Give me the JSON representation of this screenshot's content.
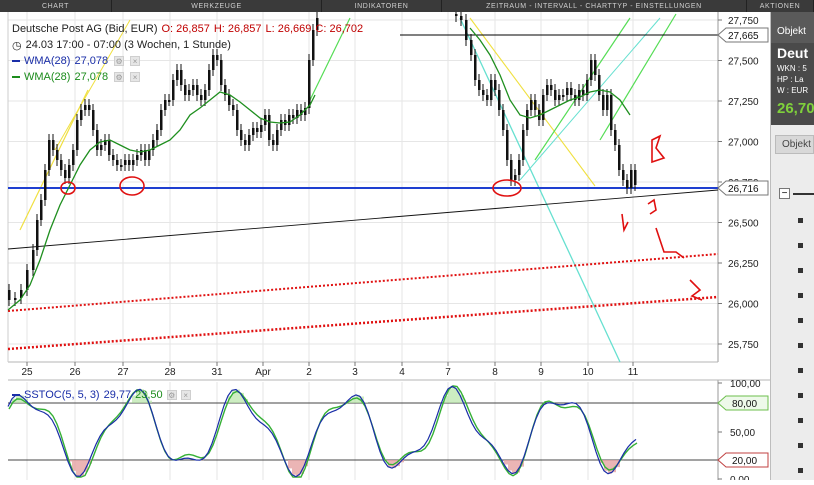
{
  "toolbar": {
    "tabs": [
      {
        "label": "CHART"
      },
      {
        "label": "WERKZEUGE"
      },
      {
        "label": "INDIKATOREN"
      },
      {
        "label": "ZEITRAUM - INTERVALL - CHARTTYP - EINSTELLUNGEN"
      },
      {
        "label": "AKTIONEN"
      }
    ]
  },
  "legend": {
    "instrument": "Deutsche Post AG (Bid, EUR)",
    "ohlc": {
      "o": "O: 26,857",
      "h": "H: 26,857",
      "l": "L: 26,669",
      "c": "C: 26,702"
    },
    "period": "24.03 17:00 - 07:00 (3 Wochen, 1 Stunde)",
    "wma1": {
      "label": "WMA(28)",
      "value": "27,078",
      "color": "#1a2ea8"
    },
    "wma2": {
      "label": "WMA(28)",
      "value": "27,078",
      "color": "#1c8c1c"
    }
  },
  "price_axis": {
    "ticks": [
      "27,750",
      "27,500",
      "27,250",
      "27,000",
      "26,750",
      "26,500",
      "26,250",
      "26,000",
      "25,750"
    ],
    "marker_high": "27,665",
    "marker_current": "26,716"
  },
  "date_axis": {
    "labels": [
      "25",
      "26",
      "27",
      "28",
      "31",
      "Apr",
      "2",
      "3",
      "4",
      "7",
      "8",
      "9",
      "10",
      "11"
    ]
  },
  "oscillator": {
    "label": "SSTOC(5, 5, 3)",
    "value1": "29,77",
    "value2": "23,50",
    "ticks": [
      "100,00",
      "80,00",
      "50,00",
      "20,00",
      "0,00"
    ],
    "marker_upper": "80,00",
    "marker_lower": "20,00"
  },
  "side_panel": {
    "tab": "Objekt",
    "name": "Deut",
    "wkn": "WKN : 5",
    "hp": "HP : La",
    "w": "W : EUR",
    "price": "26,70",
    "tab2": "Objekt",
    "collapse": "−"
  },
  "colors": {
    "price_line": "#000000",
    "support_line": "#1f3fd0",
    "wma_green": "#1f8f1f",
    "stoch_blue": "#1a2ea8",
    "stoch_green": "#35b035",
    "annotation_red": "#e01010",
    "channel_yellow": "#f0e040",
    "channel_green": "#55dd55",
    "channel_cyan": "#66e0d0"
  }
}
